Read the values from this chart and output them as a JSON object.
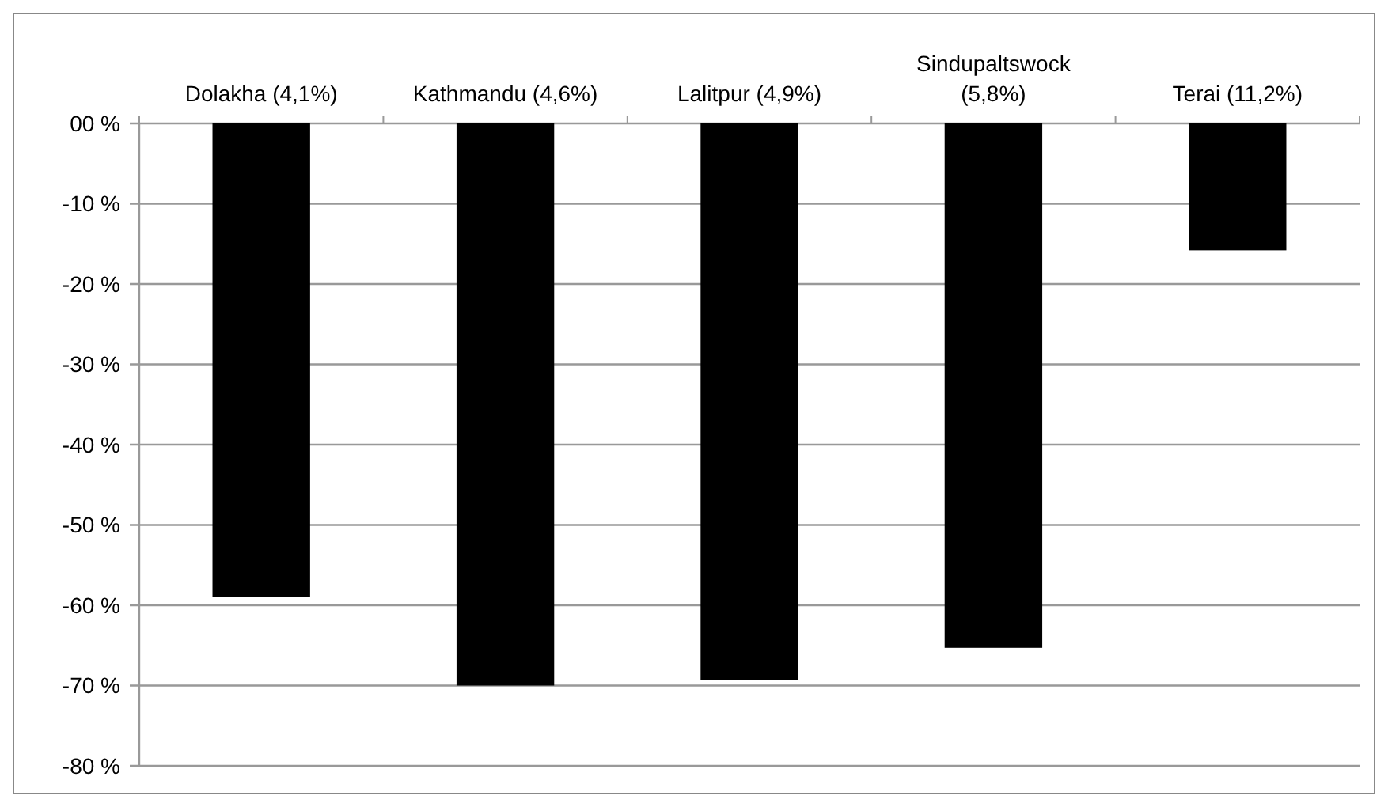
{
  "chart_data": {
    "type": "bar",
    "categories": [
      "Dolakha (4,1%)",
      "Kathmandu (4,6%)",
      "Lalitpur (4,9%)",
      "Sindupaltswock (5,8%)",
      "Terai (11,2%)"
    ],
    "values": [
      -59.0,
      -70.0,
      -69.3,
      -65.3,
      -15.8
    ],
    "color": "#000000",
    "ylim": [
      -80,
      0
    ],
    "yticks": [
      {
        "value": 0,
        "label": "00 %"
      },
      {
        "value": -10,
        "label": "-10 %"
      },
      {
        "value": -20,
        "label": "-20 %"
      },
      {
        "value": -30,
        "label": "-30 %"
      },
      {
        "value": -40,
        "label": "-40 %"
      },
      {
        "value": -50,
        "label": "-50 %"
      },
      {
        "value": -60,
        "label": "-60 %"
      },
      {
        "value": -70,
        "label": "-70 %"
      },
      {
        "value": -80,
        "label": "-80 %"
      }
    ],
    "grid": "y"
  }
}
